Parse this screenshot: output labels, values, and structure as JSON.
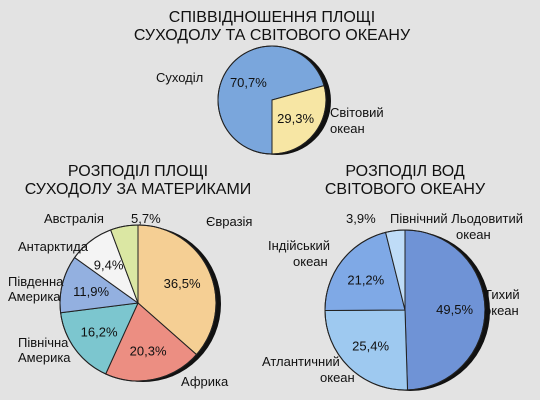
{
  "chart_data": [
    {
      "type": "pie",
      "title_lines": [
        "СПІВВІДНОШЕННЯ ПЛОЩІ",
        "СУХОДОЛУ ТА СВІТОВОГО ОКЕАНУ"
      ],
      "slices": [
        {
          "label_lines": [
            "Суходіл"
          ],
          "value": 29.3,
          "value_label": "29,3%",
          "color": "#f7e6a4"
        },
        {
          "label_lines": [
            "Світовий",
            "океан"
          ],
          "value": 70.7,
          "value_label": "70,7%",
          "color": "#7aa6dc"
        }
      ]
    },
    {
      "type": "pie",
      "title_lines": [
        "РОЗПОДІЛ ПЛОЩІ",
        "СУХОДОЛУ ЗА МАТЕРИКАМИ"
      ],
      "slices": [
        {
          "label_lines": [
            "Євразія"
          ],
          "value": 36.5,
          "value_label": "36,5%",
          "color": "#f5cf94"
        },
        {
          "label_lines": [
            "Африка"
          ],
          "value": 20.3,
          "value_label": "20,3%",
          "color": "#ec8e82"
        },
        {
          "label_lines": [
            "Північна",
            "Америка"
          ],
          "value": 16.2,
          "value_label": "16,2%",
          "color": "#7cc6cf"
        },
        {
          "label_lines": [
            "Південна",
            "Америка"
          ],
          "value": 11.9,
          "value_label": "11,9%",
          "color": "#93b0e0"
        },
        {
          "label_lines": [
            "Антарктида"
          ],
          "value": 9.4,
          "value_label": "9,4%",
          "color": "#f4f4f4"
        },
        {
          "label_lines": [
            "Австралія"
          ],
          "value": 5.7,
          "value_label": "5,7%",
          "color": "#dbe7a3"
        }
      ]
    },
    {
      "type": "pie",
      "title_lines": [
        "РОЗПОДІЛ ВОД",
        "СВІТОВОГО ОКЕАНУ"
      ],
      "slices": [
        {
          "label_lines": [
            "Тихий",
            "океан"
          ],
          "value": 49.5,
          "value_label": "49,5%",
          "color": "#6f93d6"
        },
        {
          "label_lines": [
            "Атлантичний",
            "океан"
          ],
          "value": 25.4,
          "value_label": "25,4%",
          "color": "#9ec9f0"
        },
        {
          "label_lines": [
            "Індійський",
            "океан"
          ],
          "value": 21.2,
          "value_label": "21,2%",
          "color": "#7fa9e6"
        },
        {
          "label_lines": [
            "Північний Льодовитий",
            "океан"
          ],
          "value": 3.9,
          "value_label": "3,9%",
          "color": "#bfdcf7"
        }
      ]
    }
  ]
}
